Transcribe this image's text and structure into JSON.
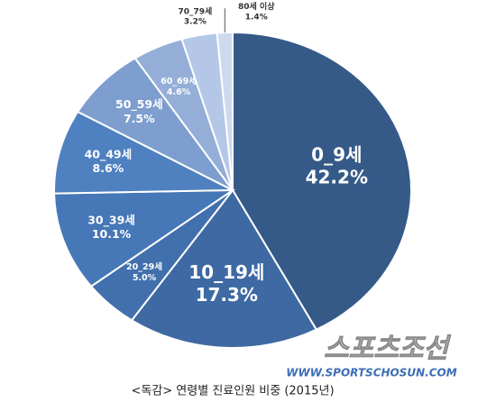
{
  "chart_data": {
    "type": "pie",
    "categories": [
      "0_9세",
      "10_19세",
      "20_29세",
      "30_39세",
      "40_49세",
      "50_59세",
      "60_69세",
      "70_79세",
      "80세 이상"
    ],
    "values": [
      42.2,
      17.3,
      5.0,
      10.1,
      8.6,
      7.5,
      4.6,
      3.2,
      1.4
    ],
    "value_labels": [
      "42.2%",
      "17.3%",
      "5.0%",
      "10.1%",
      "8.6%",
      "7.5%",
      "4.6%",
      "3.2%",
      "1.4%"
    ],
    "colors": [
      "#355a88",
      "#3e69a2",
      "#4270ad",
      "#4677b7",
      "#4f81c1",
      "#7d9ece",
      "#94aed8",
      "#b4c7e6",
      "#ccd9ef"
    ],
    "caption": "<독감> 연령별 진료인원 비중 (2015년)",
    "watermark": "스포츠조선",
    "watermark_url": "WWW.SPORTSCHOSUN.COM"
  }
}
